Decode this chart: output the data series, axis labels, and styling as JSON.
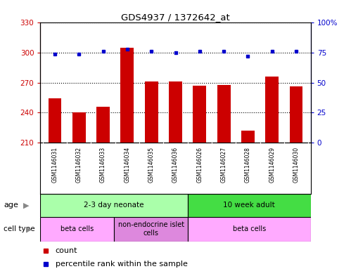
{
  "title": "GDS4937 / 1372642_at",
  "samples": [
    "GSM1146031",
    "GSM1146032",
    "GSM1146033",
    "GSM1146034",
    "GSM1146035",
    "GSM1146036",
    "GSM1146026",
    "GSM1146027",
    "GSM1146028",
    "GSM1146029",
    "GSM1146030"
  ],
  "counts": [
    254,
    240,
    246,
    305,
    271,
    271,
    267,
    268,
    222,
    276,
    266
  ],
  "percentiles": [
    74,
    74,
    76,
    78,
    76,
    75,
    76,
    76,
    72,
    76,
    76
  ],
  "ylim_left": [
    210,
    330
  ],
  "ylim_right": [
    0,
    100
  ],
  "yticks_left": [
    210,
    240,
    270,
    300,
    330
  ],
  "yticks_right": [
    0,
    25,
    50,
    75,
    100
  ],
  "ytick_right_labels": [
    "0",
    "25",
    "50",
    "75",
    "100%"
  ],
  "bar_color": "#CC0000",
  "dot_color": "#0000CC",
  "age_groups": [
    {
      "label": "2-3 day neonate",
      "start": 0,
      "end": 6,
      "color": "#AAFFAA"
    },
    {
      "label": "10 week adult",
      "start": 6,
      "end": 11,
      "color": "#44DD44"
    }
  ],
  "cell_types": [
    {
      "label": "beta cells",
      "start": 0,
      "end": 3,
      "color": "#FFAAFF"
    },
    {
      "label": "non-endocrine islet\ncells",
      "start": 3,
      "end": 6,
      "color": "#DD88DD"
    },
    {
      "label": "beta cells",
      "start": 6,
      "end": 11,
      "color": "#FFAAFF"
    }
  ],
  "legend_items": [
    {
      "color": "#CC0000",
      "label": "count"
    },
    {
      "color": "#0000CC",
      "label": "percentile rank within the sample"
    }
  ],
  "left_axis_color": "#CC0000",
  "right_axis_color": "#0000CC",
  "gray_band_color": "#CCCCCC",
  "bar_width": 0.55
}
